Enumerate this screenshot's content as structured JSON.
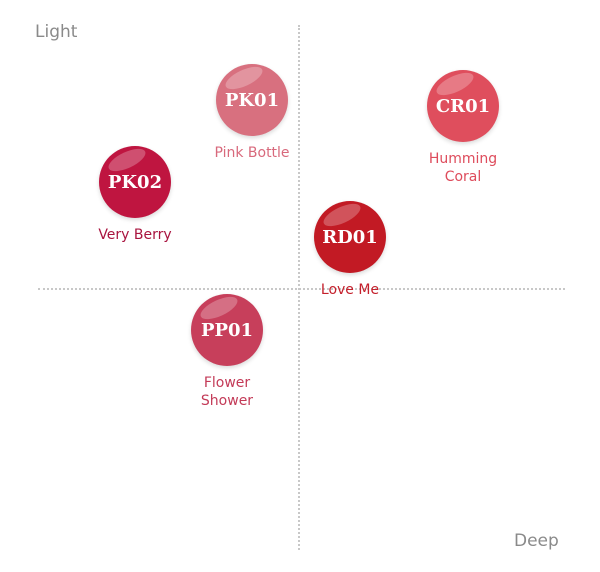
{
  "axes": {
    "top_left": "Light",
    "bottom_right": "Deep"
  },
  "nodes": [
    {
      "code": "PK01",
      "label": "Pink Bottle"
    },
    {
      "code": "CR01",
      "label": "Humming Coral"
    },
    {
      "code": "PK02",
      "label": "Very Berry"
    },
    {
      "code": "RD01",
      "label": "Love Me"
    },
    {
      "code": "PP01",
      "label": "Flower Shower"
    }
  ]
}
